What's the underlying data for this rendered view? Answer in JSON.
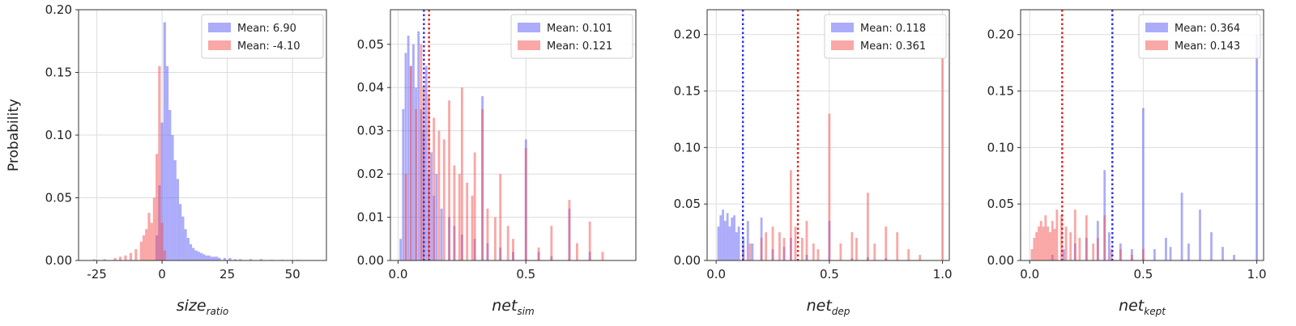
{
  "chart_data": [
    {
      "type": "histogram",
      "ylabel": "Probability",
      "xlabel_main": "size",
      "xlabel_sub": "ratio",
      "xlim": [
        -32,
        63
      ],
      "ylim": [
        0,
        0.2
      ],
      "xticks": [
        -25,
        0,
        25,
        50
      ],
      "yticks": [
        0.0,
        0.05,
        0.1,
        0.15,
        0.2
      ],
      "ytick_labels": [
        "0.00",
        "0.05",
        "0.10",
        "0.15",
        "0.20"
      ],
      "grid": true,
      "legend_position": "top-right",
      "colors": {
        "blue": "#6e6ef5",
        "red": "#f56e6e"
      },
      "series": [
        {
          "name": "Mean: 6.90",
          "color": "blue",
          "bins": [
            [
              -2,
              0.02
            ],
            [
              -1,
              0.06
            ],
            [
              0,
              0.11
            ],
            [
              1,
              0.19
            ],
            [
              2,
              0.155
            ],
            [
              3,
              0.12
            ],
            [
              4,
              0.1
            ],
            [
              5,
              0.08
            ],
            [
              6,
              0.065
            ],
            [
              7,
              0.045
            ],
            [
              8,
              0.035
            ],
            [
              9,
              0.025
            ],
            [
              10,
              0.018
            ],
            [
              11,
              0.013
            ],
            [
              12,
              0.01
            ],
            [
              13,
              0.008
            ],
            [
              14,
              0.007
            ],
            [
              15,
              0.006
            ],
            [
              16,
              0.005
            ],
            [
              17,
              0.004
            ],
            [
              18,
              0.004
            ],
            [
              19,
              0.003
            ],
            [
              20,
              0.003
            ],
            [
              21,
              0.003
            ],
            [
              22,
              0.002
            ],
            [
              24,
              0.002
            ],
            [
              26,
              0.002
            ],
            [
              28,
              0.001
            ],
            [
              30,
              0.001
            ],
            [
              34,
              0.001
            ],
            [
              38,
              0.001
            ],
            [
              42,
              0.0005
            ],
            [
              46,
              0.0005
            ],
            [
              52,
              0.0005
            ],
            [
              58,
              0.0003
            ]
          ]
        },
        {
          "name": "Mean: -4.10",
          "color": "red",
          "bins": [
            [
              -26,
              0.001
            ],
            [
              -22,
              0.001
            ],
            [
              -18,
              0.002
            ],
            [
              -16,
              0.003
            ],
            [
              -14,
              0.004
            ],
            [
              -12,
              0.006
            ],
            [
              -10,
              0.009
            ],
            [
              -8,
              0.015
            ],
            [
              -7,
              0.02
            ],
            [
              -6,
              0.025
            ],
            [
              -5,
              0.038
            ],
            [
              -4,
              0.03
            ],
            [
              -3,
              0.05
            ],
            [
              -2,
              0.085
            ],
            [
              -1,
              0.155
            ],
            [
              0,
              0.03
            ],
            [
              1,
              0.008
            ]
          ]
        }
      ]
    },
    {
      "type": "histogram",
      "xlabel_main": "net",
      "xlabel_sub": "sim",
      "xlim": [
        -0.03,
        0.93
      ],
      "ylim": [
        0,
        0.058
      ],
      "xticks": [
        0.0,
        0.5
      ],
      "xtick_labels": [
        "0.0",
        "0.5"
      ],
      "yticks": [
        0.0,
        0.01,
        0.02,
        0.03,
        0.04,
        0.05
      ],
      "ytick_labels": [
        "0.00",
        "0.01",
        "0.02",
        "0.03",
        "0.04",
        "0.05"
      ],
      "grid": true,
      "legend_position": "top-right",
      "means": [
        0.101,
        0.121
      ],
      "series": [
        {
          "name": "Mean: 0.101",
          "color": "blue",
          "bins": [
            [
              0.01,
              0.005
            ],
            [
              0.02,
              0.035
            ],
            [
              0.03,
              0.048
            ],
            [
              0.04,
              0.052
            ],
            [
              0.05,
              0.045
            ],
            [
              0.06,
              0.05
            ],
            [
              0.07,
              0.04
            ],
            [
              0.08,
              0.053
            ],
            [
              0.09,
              0.035
            ],
            [
              0.1,
              0.03
            ],
            [
              0.11,
              0.045
            ],
            [
              0.12,
              0.02
            ],
            [
              0.13,
              0.025
            ],
            [
              0.14,
              0.015
            ],
            [
              0.15,
              0.02
            ],
            [
              0.17,
              0.012
            ],
            [
              0.2,
              0.01
            ],
            [
              0.22,
              0.008
            ],
            [
              0.25,
              0.006
            ],
            [
              0.3,
              0.005
            ],
            [
              0.33,
              0.038
            ],
            [
              0.35,
              0.004
            ],
            [
              0.4,
              0.003
            ],
            [
              0.45,
              0.002
            ],
            [
              0.5,
              0.028
            ],
            [
              0.55,
              0.002
            ],
            [
              0.6,
              0.001
            ],
            [
              0.67,
              0.012
            ],
            [
              0.75,
              0.002
            ]
          ]
        },
        {
          "name": "Mean: 0.121",
          "color": "red",
          "bins": [
            [
              0.03,
              0.02
            ],
            [
              0.05,
              0.045
            ],
            [
              0.07,
              0.035
            ],
            [
              0.09,
              0.05
            ],
            [
              0.1,
              0.04
            ],
            [
              0.12,
              0.038
            ],
            [
              0.14,
              0.033
            ],
            [
              0.16,
              0.03
            ],
            [
              0.18,
              0.028
            ],
            [
              0.2,
              0.037
            ],
            [
              0.22,
              0.022
            ],
            [
              0.24,
              0.02
            ],
            [
              0.25,
              0.04
            ],
            [
              0.27,
              0.018
            ],
            [
              0.29,
              0.015
            ],
            [
              0.3,
              0.025
            ],
            [
              0.33,
              0.035
            ],
            [
              0.35,
              0.012
            ],
            [
              0.38,
              0.01
            ],
            [
              0.4,
              0.02
            ],
            [
              0.43,
              0.008
            ],
            [
              0.45,
              0.005
            ],
            [
              0.5,
              0.026
            ],
            [
              0.55,
              0.003
            ],
            [
              0.6,
              0.008
            ],
            [
              0.67,
              0.014
            ],
            [
              0.7,
              0.004
            ],
            [
              0.75,
              0.009
            ],
            [
              0.8,
              0.002
            ]
          ]
        }
      ]
    },
    {
      "type": "histogram",
      "xlabel_main": "net",
      "xlabel_sub": "dep",
      "xlim": [
        -0.04,
        1.03
      ],
      "ylim": [
        0,
        0.222
      ],
      "xticks": [
        0.0,
        0.5,
        1.0
      ],
      "xtick_labels": [
        "0.0",
        "0.5",
        "1.0"
      ],
      "yticks": [
        0.0,
        0.05,
        0.1,
        0.15,
        0.2
      ],
      "ytick_labels": [
        "0.00",
        "0.05",
        "0.10",
        "0.15",
        "0.20"
      ],
      "grid": true,
      "legend_position": "top-right",
      "means": [
        0.118,
        0.361
      ],
      "series": [
        {
          "name": "Mean: 0.118",
          "color": "blue",
          "bins": [
            [
              0.01,
              0.03
            ],
            [
              0.02,
              0.04
            ],
            [
              0.03,
              0.045
            ],
            [
              0.04,
              0.035
            ],
            [
              0.05,
              0.042
            ],
            [
              0.06,
              0.03
            ],
            [
              0.07,
              0.038
            ],
            [
              0.08,
              0.04
            ],
            [
              0.09,
              0.025
            ],
            [
              0.1,
              0.03
            ],
            [
              0.12,
              0.02
            ],
            [
              0.14,
              0.035
            ],
            [
              0.16,
              0.015
            ],
            [
              0.2,
              0.038
            ],
            [
              0.25,
              0.01
            ],
            [
              0.3,
              0.012
            ],
            [
              0.33,
              0.02
            ],
            [
              0.4,
              0.005
            ],
            [
              0.5,
              0.035
            ],
            [
              0.6,
              0.002
            ],
            [
              0.67,
              0.003
            ],
            [
              0.75,
              0.002
            ]
          ]
        },
        {
          "name": "Mean: 0.361",
          "color": "red",
          "bins": [
            [
              0.12,
              0.01
            ],
            [
              0.15,
              0.015
            ],
            [
              0.2,
              0.02
            ],
            [
              0.22,
              0.025
            ],
            [
              0.25,
              0.03
            ],
            [
              0.28,
              0.025
            ],
            [
              0.3,
              0.02
            ],
            [
              0.33,
              0.08
            ],
            [
              0.35,
              0.03
            ],
            [
              0.38,
              0.02
            ],
            [
              0.4,
              0.035
            ],
            [
              0.43,
              0.015
            ],
            [
              0.45,
              0.01
            ],
            [
              0.5,
              0.13
            ],
            [
              0.55,
              0.015
            ],
            [
              0.6,
              0.025
            ],
            [
              0.62,
              0.02
            ],
            [
              0.67,
              0.06
            ],
            [
              0.7,
              0.015
            ],
            [
              0.75,
              0.03
            ],
            [
              0.8,
              0.025
            ],
            [
              0.85,
              0.01
            ],
            [
              0.9,
              0.005
            ],
            [
              1.0,
              0.18
            ]
          ]
        }
      ]
    },
    {
      "type": "histogram",
      "xlabel_main": "net",
      "xlabel_sub": "kept",
      "xlim": [
        -0.04,
        1.03
      ],
      "ylim": [
        0,
        0.222
      ],
      "xticks": [
        0.0,
        0.5,
        1.0
      ],
      "xtick_labels": [
        "0.0",
        "0.5",
        "1.0"
      ],
      "yticks": [
        0.0,
        0.05,
        0.1,
        0.15,
        0.2
      ],
      "ytick_labels": [
        "0.00",
        "0.05",
        "0.10",
        "0.15",
        "0.20"
      ],
      "grid": true,
      "legend_position": "top-right",
      "means": [
        0.364,
        0.143
      ],
      "series": [
        {
          "name": "Mean: 0.364",
          "color": "blue",
          "bins": [
            [
              0.1,
              0.005
            ],
            [
              0.15,
              0.01
            ],
            [
              0.2,
              0.015
            ],
            [
              0.25,
              0.02
            ],
            [
              0.3,
              0.035
            ],
            [
              0.33,
              0.08
            ],
            [
              0.35,
              0.025
            ],
            [
              0.4,
              0.015
            ],
            [
              0.45,
              0.01
            ],
            [
              0.5,
              0.135
            ],
            [
              0.55,
              0.01
            ],
            [
              0.6,
              0.02
            ],
            [
              0.62,
              0.012
            ],
            [
              0.67,
              0.06
            ],
            [
              0.7,
              0.015
            ],
            [
              0.75,
              0.045
            ],
            [
              0.8,
              0.025
            ],
            [
              0.85,
              0.012
            ],
            [
              0.9,
              0.005
            ],
            [
              1.0,
              0.2
            ]
          ]
        },
        {
          "name": "Mean: 0.143",
          "color": "red",
          "bins": [
            [
              0.01,
              0.01
            ],
            [
              0.02,
              0.02
            ],
            [
              0.03,
              0.025
            ],
            [
              0.04,
              0.03
            ],
            [
              0.05,
              0.035
            ],
            [
              0.06,
              0.03
            ],
            [
              0.07,
              0.04
            ],
            [
              0.08,
              0.03
            ],
            [
              0.09,
              0.025
            ],
            [
              0.1,
              0.035
            ],
            [
              0.11,
              0.028
            ],
            [
              0.12,
              0.045
            ],
            [
              0.14,
              0.04
            ],
            [
              0.16,
              0.03
            ],
            [
              0.18,
              0.025
            ],
            [
              0.2,
              0.045
            ],
            [
              0.22,
              0.02
            ],
            [
              0.25,
              0.04
            ],
            [
              0.28,
              0.015
            ],
            [
              0.3,
              0.02
            ],
            [
              0.33,
              0.04
            ],
            [
              0.36,
              0.01
            ],
            [
              0.4,
              0.01
            ],
            [
              0.45,
              0.005
            ],
            [
              0.5,
              0.01
            ]
          ]
        }
      ]
    }
  ]
}
